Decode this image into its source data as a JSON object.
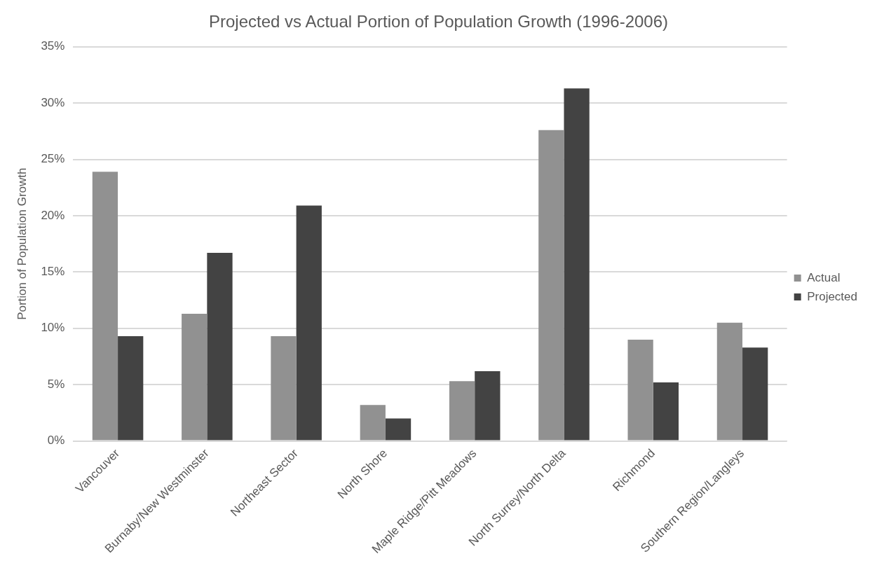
{
  "chart_data": {
    "type": "bar",
    "title": "Projected vs Actual Portion of Population Growth (1996-2006)",
    "ylabel": "Portion of Population Growth",
    "categories": [
      "Vancouver",
      "Burnaby/New Westminster",
      "Northeast Sector",
      "North Shore",
      "Maple Ridge/Pitt Meadows",
      "North Surrey/North Delta",
      "Richmond",
      "Southern Region/Langleys"
    ],
    "series": [
      {
        "name": "Actual",
        "color": "#919191",
        "values": [
          23.9,
          11.3,
          9.3,
          3.2,
          5.3,
          27.6,
          9.0,
          10.5
        ]
      },
      {
        "name": "Projected",
        "color": "#434343",
        "values": [
          9.3,
          16.7,
          20.9,
          2.0,
          6.2,
          31.3,
          5.2,
          8.3
        ]
      }
    ],
    "ylim": [
      0,
      35
    ],
    "yticks": [
      {
        "value": 0,
        "label": "0%"
      },
      {
        "value": 5,
        "label": "5%"
      },
      {
        "value": 10,
        "label": "10%"
      },
      {
        "value": 15,
        "label": "15%"
      },
      {
        "value": 20,
        "label": "20%"
      },
      {
        "value": 25,
        "label": "25%"
      },
      {
        "value": 30,
        "label": "30%"
      },
      {
        "value": 35,
        "label": "35%"
      }
    ],
    "grid": "y",
    "legend": "right"
  }
}
